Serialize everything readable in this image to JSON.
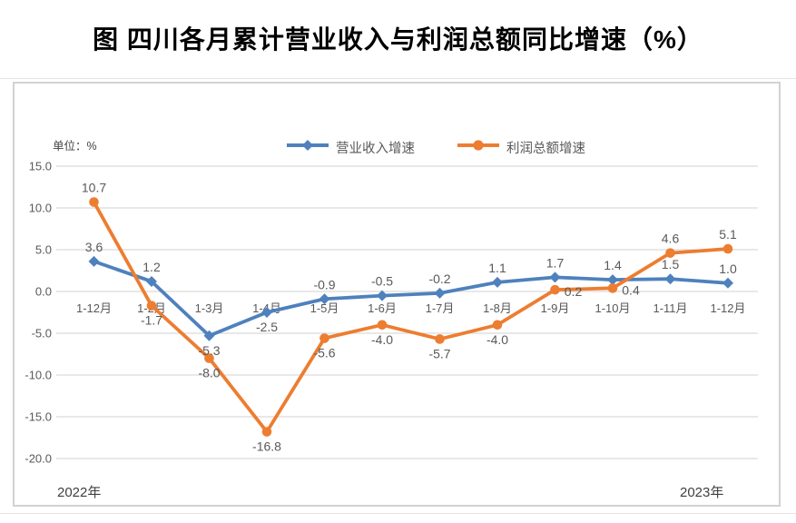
{
  "title": "图 四川各月累计营业收入与利润总额同比增速（%）",
  "chart": {
    "unit_label": "单位：%",
    "year_labels": {
      "left": "2022年",
      "right": "2023年"
    },
    "colors": {
      "revenue": "#4E81BD",
      "profit": "#ED7D31",
      "gridline": "#D9D9D9",
      "axis_text": "#595959",
      "data_label_text": "#595959"
    }
  },
  "chart_data": {
    "type": "line",
    "title": "图 四川各月累计营业收入与利润总额同比增速（%）",
    "categories": [
      "1-12月",
      "1-2月",
      "1-3月",
      "1-4月",
      "1-5月",
      "1-6月",
      "1-7月",
      "1-8月",
      "1-9月",
      "1-10月",
      "1-11月",
      "1-12月"
    ],
    "series": [
      {
        "name": "营业收入增速",
        "color": "#4E81BD",
        "marker": "diamond",
        "values": [
          3.6,
          1.2,
          -5.3,
          -2.5,
          -0.9,
          -0.5,
          -0.2,
          1.1,
          1.7,
          1.4,
          1.5,
          1.0
        ],
        "label_pos": [
          "above",
          "above",
          "below",
          "below",
          "above",
          "above",
          "above",
          "above",
          "above",
          "above",
          "above",
          "above"
        ]
      },
      {
        "name": "利润总额增速",
        "color": "#ED7D31",
        "marker": "circle",
        "values": [
          10.7,
          -1.7,
          -8.0,
          -16.8,
          -5.6,
          -4.0,
          -5.7,
          -4.0,
          0.2,
          0.4,
          4.6,
          5.1
        ],
        "label_pos": [
          "above",
          "below",
          "below",
          "below",
          "below",
          "below",
          "below",
          "below",
          "right",
          "right",
          "above",
          "above"
        ]
      }
    ],
    "xlabel": "",
    "ylabel": "单位：%",
    "ylim": [
      -20,
      15
    ],
    "ytick_step": 5,
    "yticks": [
      "15.0",
      "10.0",
      "5.0",
      "0.0",
      "-5.0",
      "-10.0",
      "-15.0",
      "-20.0"
    ],
    "grid": true,
    "legend_position": "top-center"
  }
}
